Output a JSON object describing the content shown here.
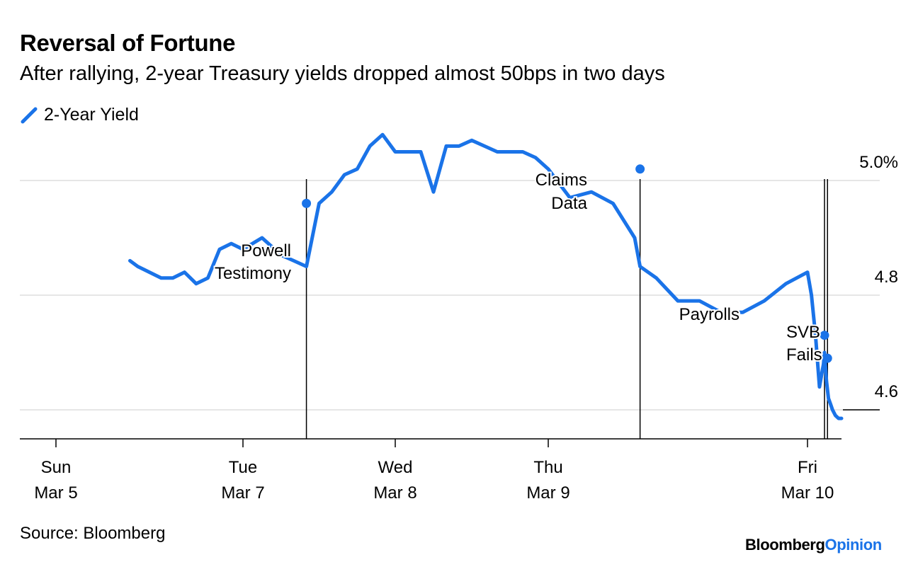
{
  "chart_data": {
    "type": "line",
    "title": "Reversal of Fortune",
    "subtitle": "After rallying, 2-year Treasury yields dropped almost 50bps in two days",
    "series": [
      {
        "name": "2-Year Yield",
        "color": "#1a73e8",
        "x": [
          "Mar 5 19:00",
          "Mar 5 21:00",
          "Mar 6 00:00",
          "Mar 6 03:00",
          "Mar 6 06:00",
          "Mar 6 09:00",
          "Mar 6 12:00",
          "Mar 6 15:00",
          "Mar 6 18:00",
          "Mar 6 21:00",
          "Mar 7 00:00",
          "Mar 7 03:00",
          "Mar 7 06:00",
          "Mar 7 08:00",
          "Mar 7 10:00",
          "Mar 7 12:00",
          "Mar 7 14:00",
          "Mar 7 16:00",
          "Mar 7 18:00",
          "Mar 7 20:00",
          "Mar 7 22:00",
          "Mar 8 00:00",
          "Mar 8 02:00",
          "Mar 8 04:00",
          "Mar 8 06:00",
          "Mar 8 08:00",
          "Mar 8 10:00",
          "Mar 8 12:00",
          "Mar 8 14:00",
          "Mar 8 16:00",
          "Mar 8 18:00",
          "Mar 8 20:00",
          "Mar 8 22:00",
          "Mar 9 00:00",
          "Mar 9 02:00",
          "Mar 9 04:00",
          "Mar 9 06:00",
          "Mar 9 08:00",
          "Mar 9 08:30",
          "Mar 9 10:00",
          "Mar 9 12:00",
          "Mar 9 14:00",
          "Mar 9 16:00",
          "Mar 9 18:00",
          "Mar 9 20:00",
          "Mar 9 22:00",
          "Mar 10 00:00",
          "Mar 10 02:00",
          "Mar 10 04:00",
          "Mar 10 06:00",
          "Mar 10 08:00",
          "Mar 10 08:30",
          "Mar 10 09:30",
          "Mar 10 10:30",
          "Mar 10 11:30",
          "Mar 10 12:30",
          "Mar 10 14:00",
          "Mar 10 15:30",
          "Mar 10 17:00"
        ],
        "y": [
          4.86,
          4.85,
          4.84,
          4.83,
          4.83,
          4.84,
          4.82,
          4.83,
          4.88,
          4.89,
          4.88,
          4.9,
          4.87,
          4.86,
          4.85,
          4.96,
          4.98,
          5.01,
          5.02,
          5.06,
          5.08,
          5.05,
          5.05,
          5.05,
          4.98,
          5.06,
          5.06,
          5.07,
          5.06,
          5.05,
          5.05,
          5.05,
          5.04,
          5.02,
          4.97,
          4.98,
          4.96,
          4.9,
          4.85,
          4.83,
          4.79,
          4.79,
          4.77,
          4.77,
          4.79,
          4.82,
          4.84,
          4.8,
          4.73,
          4.64,
          4.68,
          4.7,
          4.65,
          4.62,
          4.61,
          4.6,
          4.59,
          4.585,
          4.585
        ]
      }
    ],
    "x_ticks": [
      {
        "day": "Sun",
        "date": "Mar 5",
        "at": "Mar 5 00:00"
      },
      {
        "day": "Tue",
        "date": "Mar 7",
        "at": "Mar 7 00:00"
      },
      {
        "day": "Wed",
        "date": "Mar 8",
        "at": "Mar 8 00:00"
      },
      {
        "day": "Thu",
        "date": "Mar 9",
        "at": "Mar 9 00:00"
      },
      {
        "day": "Fri",
        "date": "Mar 10",
        "at": "Mar 10 00:00"
      }
    ],
    "y_ticks": [
      {
        "value": 5.0,
        "label": "5.0%"
      },
      {
        "value": 4.8,
        "label": "4.8"
      },
      {
        "value": 4.6,
        "label": "4.6"
      }
    ],
    "ylim": [
      4.55,
      5.05
    ],
    "annotations": [
      {
        "line1": "Powell",
        "line2": "Testimony",
        "x": "Mar 7 10:00",
        "y": 4.96
      },
      {
        "line1": "Claims",
        "line2": "Data",
        "x": "Mar 9 08:30",
        "y": 5.02
      },
      {
        "line1": "Payrolls",
        "line2": "",
        "x": "Mar 10 08:30",
        "y": 4.73
      },
      {
        "line1": "SVB",
        "line2": "Fails",
        "x": "Mar 10 10:00",
        "y": 4.69
      }
    ],
    "grid": true,
    "legend_position": "top-left"
  },
  "footer": {
    "source": "Source: Bloomberg",
    "brand_main": "Bloomberg",
    "brand_accent": "Opinion"
  }
}
